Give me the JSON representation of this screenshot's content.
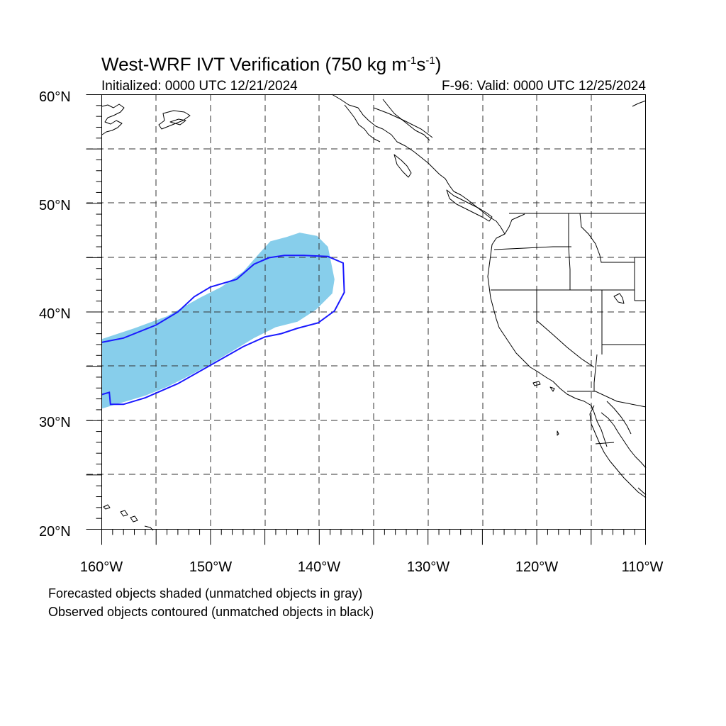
{
  "title": {
    "main": "West-WRF IVT Verification (750 kg m",
    "exp1": "-1",
    "mid": "s",
    "exp2": "-1",
    "end": ")"
  },
  "subtitle": {
    "initialized": "Initialized: 0000 UTC 12/21/2024",
    "valid": "F-96: Valid: 0000 UTC 12/25/2024"
  },
  "notes": {
    "forecast": "Forecasted objects shaded (unmatched objects in gray)",
    "observed": "Observed objects contoured (unmatched objects in black)"
  },
  "map": {
    "lon_range": [
      -160,
      -110
    ],
    "lat_range": [
      20,
      60
    ],
    "lat_ticks": [
      "20°N",
      "30°N",
      "40°N",
      "50°N",
      "60°N"
    ],
    "lon_ticks": [
      "160°W",
      "150°W",
      "140°W",
      "130°W",
      "120°W",
      "110°W"
    ],
    "gridlines": "dashed every 5°",
    "forecast_object_color": "#87ceeb",
    "observed_contour_color": "#1a1aff",
    "forecast_object": {
      "description_values_lon_lat": [
        [
          -160,
          37.5
        ],
        [
          -157,
          38.5
        ],
        [
          -154,
          39.6
        ],
        [
          -151,
          41.3
        ],
        [
          -149,
          42.3
        ],
        [
          -147,
          43.7
        ],
        [
          -145.5,
          45.4
        ],
        [
          -144.5,
          46.5
        ],
        [
          -143,
          46.9
        ],
        [
          -141.8,
          47.3
        ],
        [
          -140.2,
          47.0
        ],
        [
          -139.2,
          46.0
        ],
        [
          -138.6,
          43.0
        ],
        [
          -138.8,
          41.7
        ],
        [
          -140.3,
          40.2
        ],
        [
          -142,
          39.1
        ],
        [
          -144,
          38.6
        ],
        [
          -146,
          37.6
        ],
        [
          -148,
          36.4
        ],
        [
          -150,
          35.2
        ],
        [
          -152,
          34.1
        ],
        [
          -154,
          33.1
        ],
        [
          -156,
          32.3
        ],
        [
          -158,
          31.7
        ],
        [
          -160,
          31.1
        ]
      ]
    },
    "observed_object": {
      "description_values_lon_lat": [
        [
          -160,
          37.2
        ],
        [
          -158,
          37.6
        ],
        [
          -155,
          38.8
        ],
        [
          -153,
          40.0
        ],
        [
          -151.5,
          41.4
        ],
        [
          -150,
          42.3
        ],
        [
          -147.6,
          43.0
        ],
        [
          -146,
          44.4
        ],
        [
          -144.6,
          45.0
        ],
        [
          -143.2,
          45.2
        ],
        [
          -141.4,
          45.2
        ],
        [
          -139.2,
          45.1
        ],
        [
          -137.8,
          44.5
        ],
        [
          -137.7,
          41.8
        ],
        [
          -138.6,
          40.1
        ],
        [
          -140.1,
          39.0
        ],
        [
          -142,
          38.5
        ],
        [
          -143.5,
          38.0
        ],
        [
          -145,
          37.7
        ],
        [
          -147,
          36.8
        ],
        [
          -150,
          35.1
        ],
        [
          -153,
          33.4
        ],
        [
          -156,
          32.1
        ],
        [
          -158,
          31.5
        ],
        [
          -159.2,
          31.5
        ],
        [
          -159.3,
          32.6
        ],
        [
          -160,
          32.4
        ]
      ]
    }
  }
}
